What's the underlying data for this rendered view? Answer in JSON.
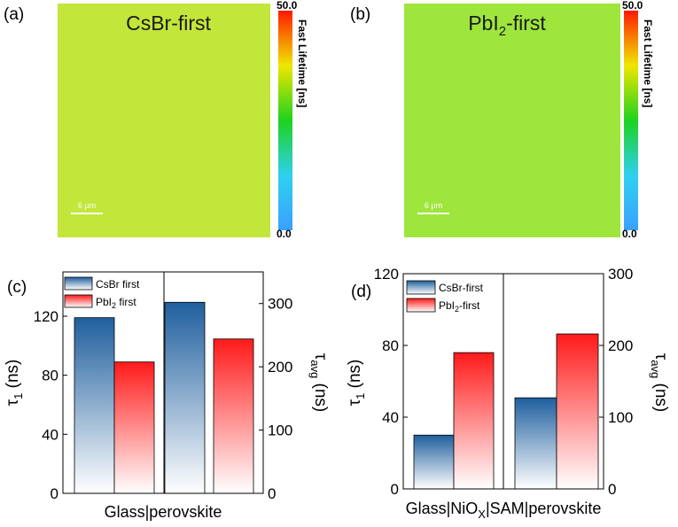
{
  "panels": {
    "a": {
      "letter": "(a)",
      "title": "CsBr-first",
      "scale_bar": "6 μm",
      "map_color": "#c2e63a",
      "colorbar": {
        "label": "Fast Lifetime [ns]",
        "max": "50.0",
        "min": "0.0"
      }
    },
    "b": {
      "letter": "(b)",
      "title_main": "PbI",
      "title_sub": "2",
      "title_rest": "-first",
      "scale_bar": "6 μm",
      "map_color": "#9ee63c",
      "colorbar": {
        "label": "Fast Lifetime [ns]",
        "max": "50.0",
        "min": "0.0"
      }
    },
    "c": {
      "letter": "(c)"
    },
    "d": {
      "letter": "(d)"
    }
  },
  "colors": {
    "blue": "#1f5f9e",
    "red": "#ff1a1a"
  },
  "chart_data": [
    {
      "type": "bar",
      "panel": "c",
      "xlabel": "Glass|perovskite",
      "ylabel_left": {
        "main": "τ",
        "sub": "1",
        "rest": " (ns)"
      },
      "ylabel_right": {
        "main": "τ",
        "sub": "avg",
        "rest": " (ns)"
      },
      "left_ylim": [
        0,
        150
      ],
      "left_ticks": [
        "0",
        "40",
        "80",
        "120"
      ],
      "left_tick_values": [
        0,
        40,
        80,
        120
      ],
      "right_ylim": [
        0,
        350
      ],
      "right_ticks": [
        "0",
        "100",
        "200",
        "300"
      ],
      "right_tick_values": [
        0,
        100,
        200,
        300
      ],
      "legend": [
        {
          "main": "CsBr first",
          "sub": "",
          "rest": "",
          "color": "blue"
        },
        {
          "main": "PbI",
          "sub": "2",
          "rest": " first",
          "color": "red"
        }
      ],
      "groups": [
        {
          "name": "τ1",
          "axis": "left",
          "series": [
            {
              "name": "CsBr first",
              "value": 119,
              "color": "blue"
            },
            {
              "name": "PbI2 first",
              "value": 89,
              "color": "red"
            }
          ]
        },
        {
          "name": "τavg",
          "axis": "right",
          "series": [
            {
              "name": "CsBr first",
              "value": 302,
              "color": "blue"
            },
            {
              "name": "PbI2 first",
              "value": 244,
              "color": "red"
            }
          ]
        }
      ]
    },
    {
      "type": "bar",
      "panel": "d",
      "xlabel": {
        "a": "Glass|NiO",
        "sub": "X",
        "b": "|SAM|perovskite"
      },
      "ylabel_left": {
        "main": "τ",
        "sub": "1",
        "rest": " (ns)"
      },
      "ylabel_right": {
        "main": "τ",
        "sub": "avg",
        "rest": " (ns)"
      },
      "left_ylim": [
        0,
        120
      ],
      "left_ticks": [
        "0",
        "40",
        "80",
        "120"
      ],
      "left_tick_values": [
        0,
        40,
        80,
        120
      ],
      "right_ylim": [
        0,
        300
      ],
      "right_ticks": [
        "0",
        "100",
        "200",
        "300"
      ],
      "right_tick_values": [
        0,
        100,
        200,
        300
      ],
      "legend": [
        {
          "main": "CsBr-first",
          "sub": "",
          "rest": "",
          "color": "blue"
        },
        {
          "main": "PbI",
          "sub": "2",
          "rest": "-first",
          "color": "red"
        }
      ],
      "groups": [
        {
          "name": "τ1",
          "axis": "left",
          "series": [
            {
              "name": "CsBr-first",
              "value": 30,
              "color": "blue"
            },
            {
              "name": "PbI2-first",
              "value": 76,
              "color": "red"
            }
          ]
        },
        {
          "name": "τavg",
          "axis": "right",
          "series": [
            {
              "name": "CsBr-first",
              "value": 127,
              "color": "blue"
            },
            {
              "name": "PbI2-first",
              "value": 216,
              "color": "red"
            }
          ]
        }
      ]
    }
  ]
}
